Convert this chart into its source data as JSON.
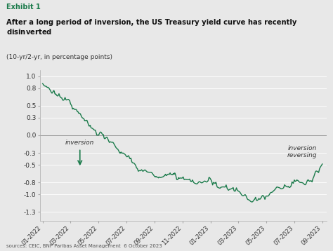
{
  "title_exhibit": "Exhibit 1",
  "title_bold": "After a long period of inversion, the US Treasury yield curve has recently\ndisinverted",
  "title_normal": "(10-yr/2-yr, in percentage points)",
  "source": "sources: CEIC, BNP Paribas Asset Management  6 October 2023",
  "line_color": "#1a7a4a",
  "background_color": "#e8e8e8",
  "plot_background": "#e8e8e8",
  "yticks": [
    1.0,
    0.8,
    0.5,
    0.3,
    0.0,
    -0.3,
    -0.5,
    -0.8,
    -1.0,
    -1.3
  ],
  "ylim": [
    -1.45,
    1.1
  ],
  "annotation_inversion": "inversion",
  "annotation_reversing": "inversion\nreversing",
  "x_labels": [
    "01-2022",
    "03-2022",
    "05-2022",
    "07-2022",
    "09-2022",
    "11-2022",
    "01-2023",
    "03-2023",
    "05-2023",
    "07-2023",
    "09-2023"
  ]
}
